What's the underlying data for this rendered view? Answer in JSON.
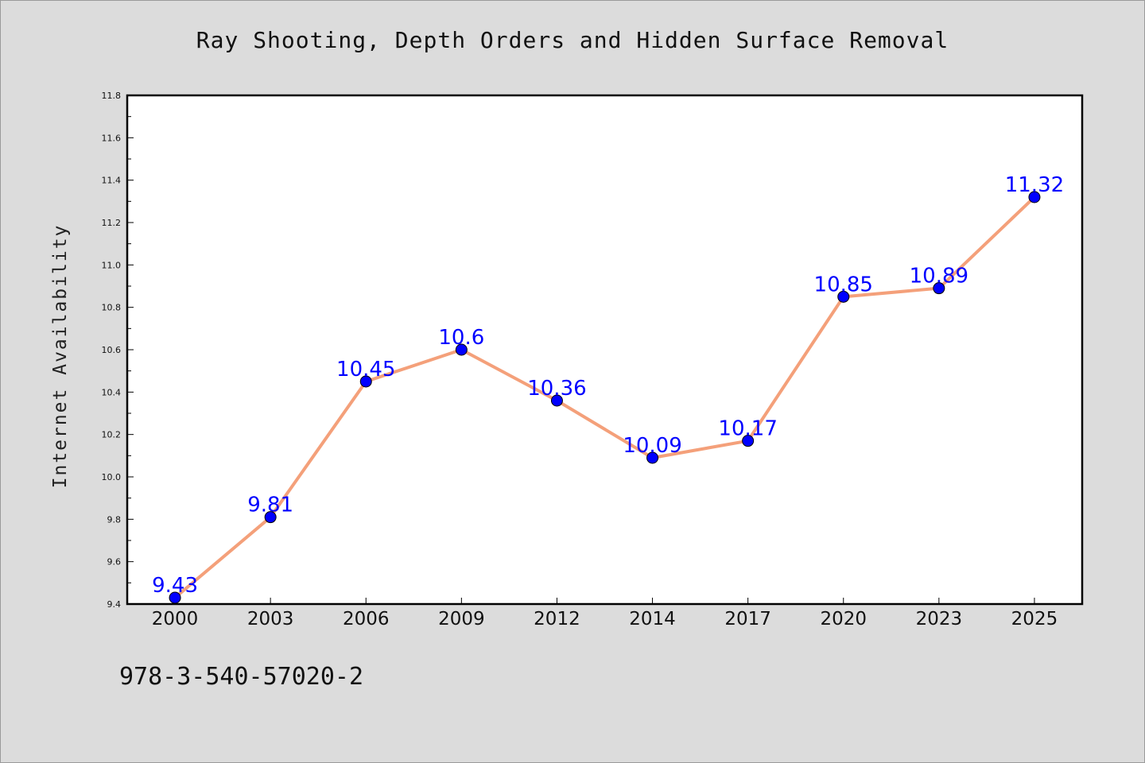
{
  "chart_data": {
    "type": "line",
    "title": "Ray Shooting, Depth Orders and Hidden Surface Removal",
    "xlabel": "",
    "ylabel": "Internet Availability",
    "categories": [
      "2000",
      "2003",
      "2006",
      "2009",
      "2012",
      "2014",
      "2017",
      "2020",
      "2023",
      "2025"
    ],
    "series": [
      {
        "values": [
          9.43,
          9.81,
          10.45,
          10.6,
          10.36,
          10.09,
          10.17,
          10.85,
          10.89,
          11.32
        ],
        "line_color": "#f4a07a",
        "marker_color": "#0000ff"
      }
    ],
    "data_labels": [
      "9.43",
      "9.81",
      "10.45",
      "10.6",
      "10.36",
      "10.09",
      "10.17",
      "10.85",
      "10.89",
      "11.32"
    ],
    "ylim": [
      9.4,
      11.8
    ],
    "yticks": [
      "9.4",
      "9.6",
      "9.8",
      "10.0",
      "10.2",
      "10.4",
      "10.6",
      "10.8",
      "11.0",
      "11.2",
      "11.4",
      "11.6",
      "11.8"
    ],
    "grid": false,
    "legend": "none",
    "background": "#dcdcdc",
    "plot_background": "#ffffff"
  },
  "footnote": "978-3-540-57020-2"
}
